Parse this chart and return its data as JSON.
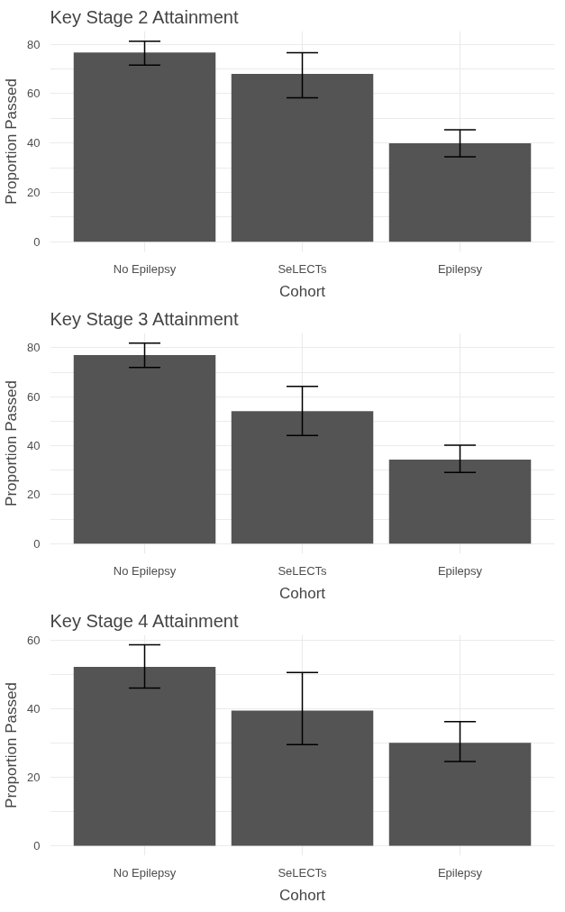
{
  "chart_data": [
    {
      "type": "bar",
      "title": "Key Stage 2 Attainment",
      "xlabel": "Cohort",
      "ylabel": "Proportion Passed",
      "categories": [
        "No Epilepsy",
        "SeLECTs",
        "Epilepsy"
      ],
      "values": [
        76.6,
        68.0,
        39.9
      ],
      "color": "#545454",
      "errors": [
        [
          71.5,
          81.2
        ],
        [
          58.3,
          76.5
        ],
        [
          34.4,
          45.3
        ]
      ],
      "ylim": [
        -4.1,
        85.3
      ],
      "yticks": [
        0,
        {
          "value": 10,
          "label": null
        },
        20,
        {
          "value": 30,
          "label": null
        },
        40,
        {
          "value": 50,
          "label": null
        },
        60,
        {
          "value": 70,
          "label": null
        },
        80
      ],
      "grid": true
    },
    {
      "type": "bar",
      "title": "Key Stage 3 Attainment",
      "xlabel": "Cohort",
      "ylabel": "Proportion Passed",
      "categories": [
        "No Epilepsy",
        "SeLECTs",
        "Epilepsy"
      ],
      "values": [
        77.0,
        54.1,
        34.3
      ],
      "color": "#545454",
      "errors": [
        [
          71.9,
          81.9
        ],
        [
          44.2,
          64.2
        ],
        [
          29.1,
          40.2
        ]
      ],
      "ylim": [
        -4.1,
        86.0
      ],
      "yticks": [
        0,
        {
          "value": 10,
          "label": null
        },
        20,
        {
          "value": 30,
          "label": null
        },
        40,
        {
          "value": 50,
          "label": null
        },
        60,
        {
          "value": 70,
          "label": null
        },
        80
      ],
      "grid": true
    },
    {
      "type": "bar",
      "title": "Key Stage 4 Attainment",
      "xlabel": "Cohort",
      "ylabel": "Proportion Passed",
      "categories": [
        "No Epilepsy",
        "SeLECTs",
        "Epilepsy"
      ],
      "values": [
        52.2,
        39.4,
        30.0
      ],
      "color": "#545454",
      "errors": [
        [
          46.0,
          58.6
        ],
        [
          29.5,
          50.5
        ],
        [
          24.6,
          36.2
        ]
      ],
      "ylim": [
        -2.9,
        61.5
      ],
      "yticks": [
        0,
        {
          "value": 10,
          "label": null
        },
        20,
        {
          "value": 30,
          "label": null
        },
        40,
        {
          "value": 50,
          "label": null
        },
        60
      ],
      "grid": true
    }
  ]
}
